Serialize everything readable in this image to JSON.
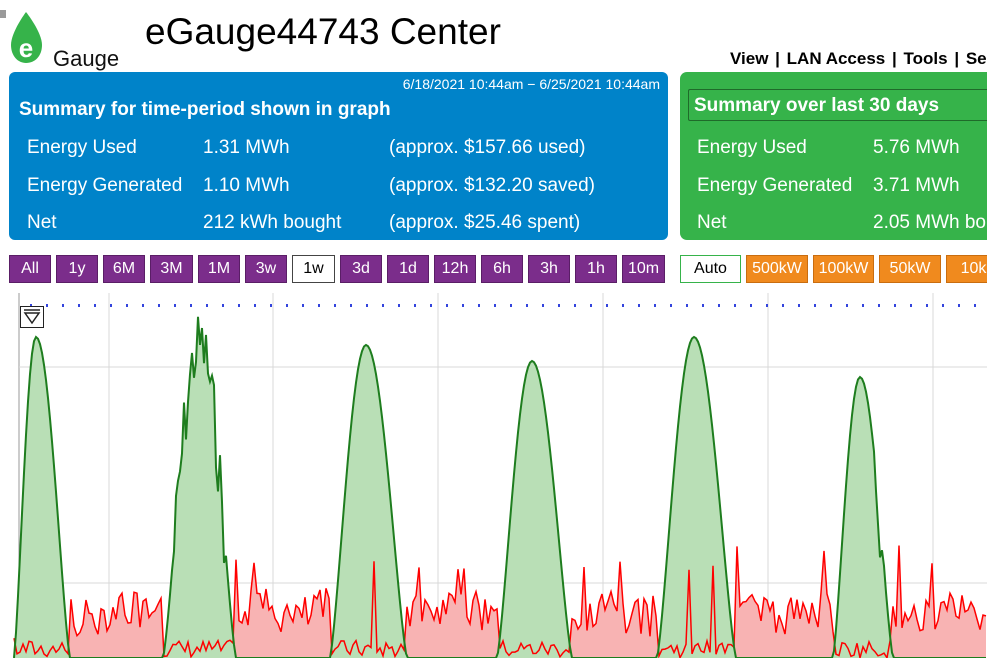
{
  "header": {
    "logo_text": "Gauge",
    "title": "eGauge44743 Center",
    "nav": [
      "View",
      "LAN Access",
      "Tools",
      "Se"
    ]
  },
  "summary_period": {
    "range": "6/18/2021 10:44am − 6/25/2021 10:44am",
    "title": "Summary for time-period shown in graph",
    "rows": [
      {
        "label": "Energy Used",
        "value": "1.31 MWh",
        "cost": "(approx. $157.66 used)"
      },
      {
        "label": "Energy Generated",
        "value": "1.10 MWh",
        "cost": "(approx. $132.20 saved)"
      },
      {
        "label": "Net",
        "value": "212 kWh bought",
        "cost": "(approx. $25.46 spent)"
      }
    ]
  },
  "summary_30": {
    "title": "Summary over last 30 days",
    "rows": [
      {
        "label": "Energy Used",
        "value": "5.76 MWh"
      },
      {
        "label": "Energy Generated",
        "value": "3.71 MWh"
      },
      {
        "label": "Net",
        "value": "2.05 MWh bo"
      }
    ]
  },
  "time_buttons": [
    "All",
    "1y",
    "6M",
    "3M",
    "1M",
    "3w",
    "1w",
    "3d",
    "1d",
    "12h",
    "6h",
    "3h",
    "1h",
    "10m"
  ],
  "active_time_button": "1w",
  "scale_buttons": [
    "Auto",
    "500kW",
    "100kW",
    "50kW",
    "10k"
  ],
  "colors": {
    "blue_panel": "#0083c9",
    "green_panel": "#36b34a",
    "purple_button": "#7b2d8b",
    "orange_button": "#f08a1e",
    "generated_line": "#1e7d1e",
    "generated_fill": "#b9dfb6",
    "used_line": "#ff0000",
    "used_fill": "#f8b3b3"
  },
  "graph": {
    "series": [
      {
        "name": "Energy Generated",
        "color": "#1e7d1e"
      },
      {
        "name": "Energy Used",
        "color": "#ff0000"
      }
    ]
  }
}
